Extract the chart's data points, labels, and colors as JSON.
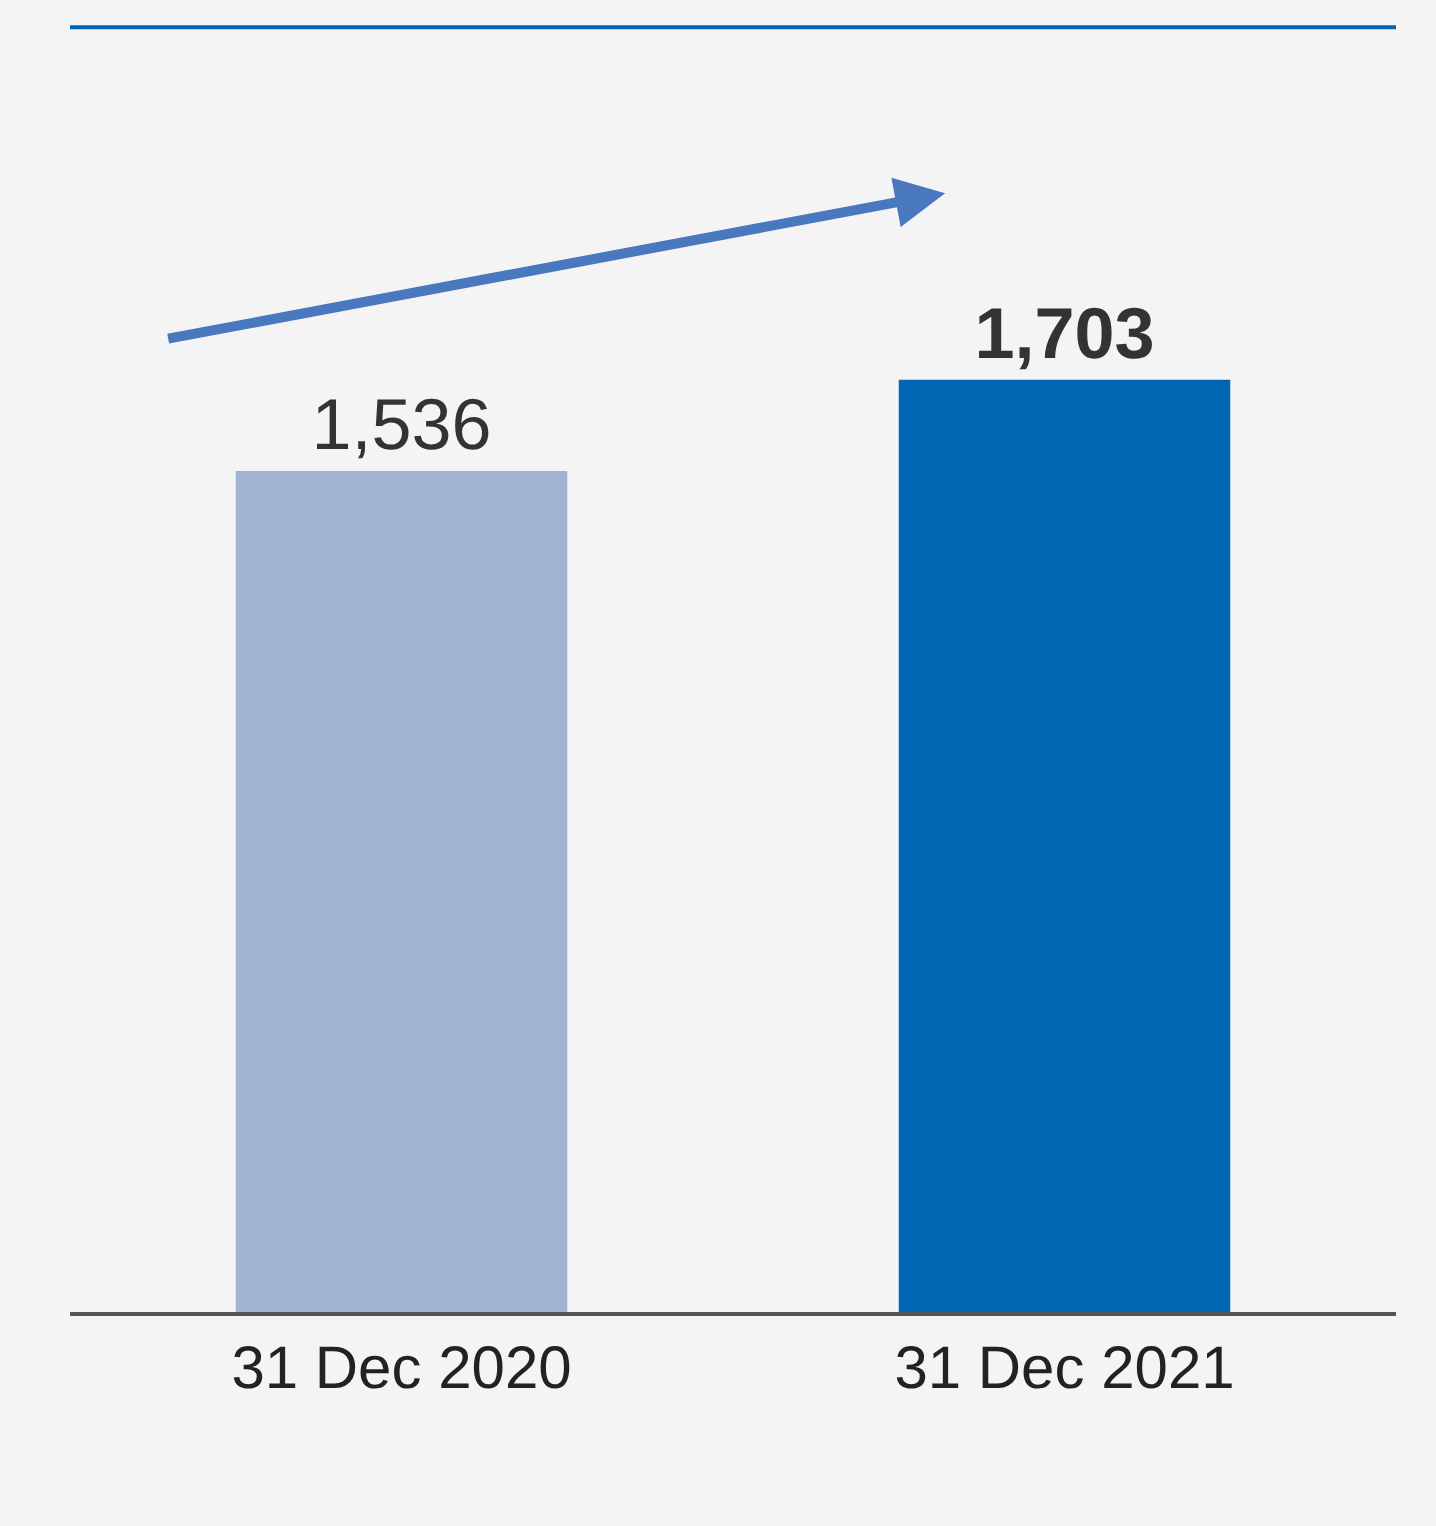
{
  "chart_data": {
    "type": "bar",
    "categories": [
      "31 Dec 2020",
      "31 Dec 2021"
    ],
    "values": [
      1536,
      1703
    ],
    "colors": [
      "#a0b3d1",
      "#0066b3"
    ],
    "value_labels": [
      "1,536",
      "1,703"
    ],
    "grid": false,
    "legend": false
  }
}
